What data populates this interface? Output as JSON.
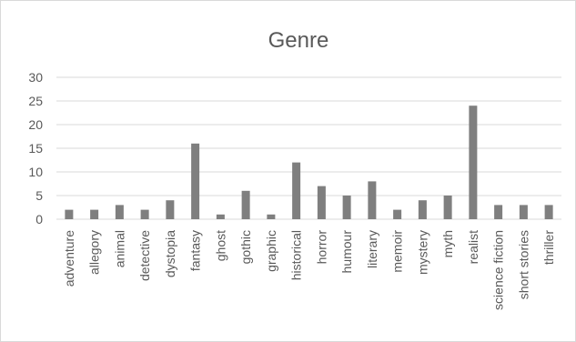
{
  "chart_data": {
    "type": "bar",
    "title": "Genre",
    "xlabel": "",
    "ylabel": "",
    "ylim": [
      0,
      30
    ],
    "yticks": [
      0,
      5,
      10,
      15,
      20,
      25,
      30
    ],
    "grid": true,
    "legend": "none",
    "bar_color": "#7f7f7f",
    "categories": [
      "adventure",
      "allegory",
      "animal",
      "detective",
      "dystopia",
      "fantasy",
      "ghost",
      "gothic",
      "graphic",
      "historical",
      "horror",
      "humour",
      "literary",
      "memoir",
      "mystery",
      "myth",
      "realist",
      "science fiction",
      "short stories",
      "thriller"
    ],
    "values": [
      2,
      2,
      3,
      2,
      4,
      16,
      1,
      6,
      1,
      12,
      7,
      5,
      8,
      2,
      4,
      5,
      24,
      3,
      3,
      3
    ]
  }
}
